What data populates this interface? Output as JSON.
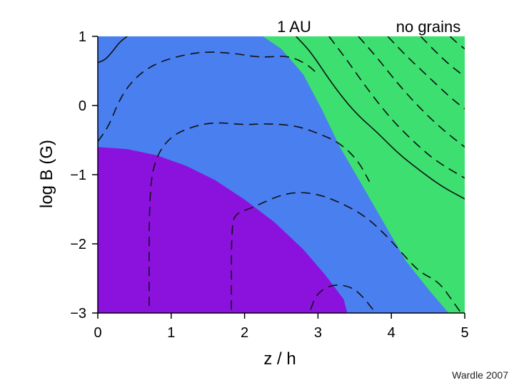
{
  "chart_data": {
    "type": "heatmap",
    "title_left": "1 AU",
    "title_right": "no grains",
    "xlabel": "z / h",
    "ylabel": "log B (G)",
    "xlim": [
      0,
      5
    ],
    "ylim": [
      -3,
      1
    ],
    "x_ticks": [
      0,
      1,
      2,
      3,
      4,
      5
    ],
    "x_tick_labels": [
      "0",
      "1",
      "2",
      "3",
      "4",
      "5"
    ],
    "y_ticks": [
      1,
      0,
      -1,
      -2,
      -3
    ],
    "y_tick_labels": [
      "1",
      "0",
      "−1",
      "−2",
      "−3"
    ],
    "regions": [
      {
        "name": "blue-region",
        "color": "#4a7ff0",
        "boundary": [
          [
            0,
            1
          ],
          [
            5,
            1
          ],
          [
            5,
            -3
          ],
          [
            0,
            -3
          ]
        ]
      },
      {
        "name": "purple-region",
        "color": "#8b12dd",
        "boundary": [
          [
            0,
            -0.6
          ],
          [
            0.4,
            -0.63
          ],
          [
            0.8,
            -0.72
          ],
          [
            1.2,
            -0.87
          ],
          [
            1.6,
            -1.08
          ],
          [
            2.0,
            -1.36
          ],
          [
            2.4,
            -1.68
          ],
          [
            2.8,
            -2.08
          ],
          [
            3.1,
            -2.45
          ],
          [
            3.35,
            -2.8
          ],
          [
            3.4,
            -3
          ],
          [
            0,
            -3
          ]
        ]
      },
      {
        "name": "green-region",
        "color": "#3de070",
        "boundary": [
          [
            2.25,
            1
          ],
          [
            5,
            1
          ],
          [
            5,
            -3
          ],
          [
            4.78,
            -3
          ],
          [
            4.5,
            -2.65
          ],
          [
            4.2,
            -2.25
          ],
          [
            3.9,
            -1.7
          ],
          [
            3.6,
            -1.15
          ],
          [
            3.3,
            -0.6
          ],
          [
            3.05,
            -0.05
          ],
          [
            2.8,
            0.45
          ],
          [
            2.5,
            0.82
          ]
        ]
      }
    ],
    "contours": [
      {
        "style": "solid",
        "points": [
          [
            0,
            0.62
          ],
          [
            0.1,
            0.66
          ],
          [
            0.2,
            0.78
          ],
          [
            0.3,
            0.92
          ],
          [
            0.4,
            1.0
          ]
        ]
      },
      {
        "style": "dashed",
        "points": [
          [
            0,
            -0.52
          ],
          [
            0.15,
            -0.3
          ],
          [
            0.3,
            0.1
          ],
          [
            0.5,
            0.4
          ],
          [
            0.8,
            0.62
          ],
          [
            1.2,
            0.74
          ],
          [
            1.5,
            0.78
          ],
          [
            1.9,
            0.75
          ],
          [
            2.1,
            0.71
          ],
          [
            2.3,
            0.7
          ],
          [
            2.6,
            0.72
          ],
          [
            2.85,
            0.6
          ],
          [
            3.0,
            0.45
          ]
        ]
      },
      {
        "style": "dashed",
        "points": [
          [
            0.7,
            -2.9
          ],
          [
            0.7,
            -1.2
          ],
          [
            0.8,
            -0.72
          ],
          [
            1.0,
            -0.44
          ],
          [
            1.3,
            -0.3
          ],
          [
            1.6,
            -0.24
          ],
          [
            2.0,
            -0.28
          ],
          [
            2.3,
            -0.26
          ],
          [
            2.7,
            -0.29
          ],
          [
            3.0,
            -0.4
          ],
          [
            3.3,
            -0.54
          ],
          [
            3.55,
            -0.8
          ],
          [
            3.7,
            -1.1
          ]
        ]
      },
      {
        "style": "dashed",
        "points": [
          [
            1.82,
            -2.95
          ],
          [
            1.82,
            -1.7
          ],
          [
            1.9,
            -1.55
          ],
          [
            2.05,
            -1.5
          ],
          [
            2.2,
            -1.43
          ],
          [
            2.45,
            -1.31
          ],
          [
            2.7,
            -1.25
          ],
          [
            3.0,
            -1.28
          ],
          [
            3.3,
            -1.4
          ],
          [
            3.65,
            -1.6
          ],
          [
            3.95,
            -1.9
          ],
          [
            4.2,
            -2.2
          ],
          [
            4.4,
            -2.42
          ],
          [
            4.65,
            -2.55
          ],
          [
            4.85,
            -2.85
          ],
          [
            4.95,
            -3.0
          ]
        ]
      },
      {
        "style": "dashed",
        "points": [
          [
            2.9,
            -2.95
          ],
          [
            2.98,
            -2.72
          ],
          [
            3.2,
            -2.58
          ],
          [
            3.45,
            -2.62
          ],
          [
            3.6,
            -2.75
          ],
          [
            3.75,
            -2.95
          ]
        ]
      },
      {
        "style": "solid",
        "points": [
          [
            2.7,
            1.0
          ],
          [
            2.9,
            0.78
          ],
          [
            3.2,
            0.3
          ],
          [
            3.5,
            -0.1
          ],
          [
            3.8,
            -0.38
          ],
          [
            4.1,
            -0.7
          ],
          [
            4.4,
            -0.95
          ],
          [
            4.7,
            -1.18
          ],
          [
            5.0,
            -1.35
          ]
        ]
      },
      {
        "style": "dashed",
        "points": [
          [
            3.15,
            1.0
          ],
          [
            3.4,
            0.65
          ],
          [
            3.7,
            0.2
          ],
          [
            4.0,
            -0.2
          ],
          [
            4.3,
            -0.52
          ],
          [
            4.6,
            -0.8
          ],
          [
            5.0,
            -1.05
          ]
        ]
      },
      {
        "style": "dashed",
        "points": [
          [
            3.55,
            1.0
          ],
          [
            3.8,
            0.7
          ],
          [
            4.1,
            0.3
          ],
          [
            4.4,
            -0.05
          ],
          [
            4.7,
            -0.35
          ],
          [
            5.0,
            -0.6
          ]
        ]
      },
      {
        "style": "dashed",
        "points": [
          [
            3.95,
            1.0
          ],
          [
            4.2,
            0.72
          ],
          [
            4.5,
            0.42
          ],
          [
            4.8,
            0.12
          ],
          [
            5.0,
            -0.05
          ]
        ]
      },
      {
        "style": "dashed",
        "points": [
          [
            4.4,
            1.0
          ],
          [
            4.6,
            0.78
          ],
          [
            4.8,
            0.58
          ],
          [
            5.0,
            0.42
          ]
        ]
      },
      {
        "style": "dashed",
        "points": [
          [
            4.8,
            1.0
          ],
          [
            4.9,
            0.9
          ],
          [
            5.0,
            0.82
          ]
        ]
      }
    ]
  },
  "credit": "Wardle 2007"
}
